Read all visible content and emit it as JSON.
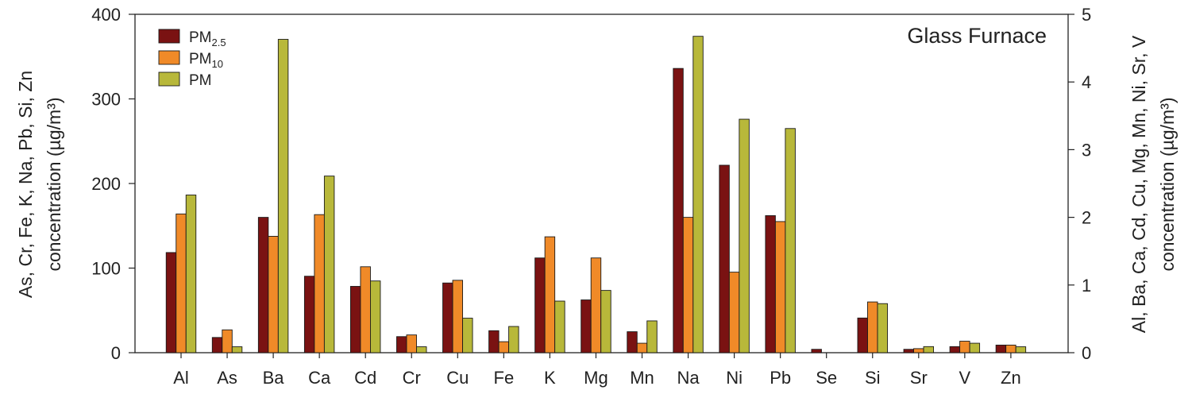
{
  "chart_data": {
    "type": "bar",
    "title": "Glass Furnace",
    "categories": [
      "Al",
      "As",
      "Ba",
      "Ca",
      "Cd",
      "Cr",
      "Cu",
      "Fe",
      "K",
      "Mg",
      "Mn",
      "Na",
      "Ni",
      "Pb",
      "Se",
      "Si",
      "Sr",
      "V",
      "Zn"
    ],
    "series": [
      {
        "name": "PM2.5",
        "color": "#7a1212",
        "values": [
          1.48,
          18,
          2.0,
          1.13,
          0.98,
          19,
          1.03,
          26,
          112,
          0.78,
          0.31,
          336,
          2.77,
          162,
          0.05,
          41,
          0.05,
          0.09,
          9
        ]
      },
      {
        "name": "PM10",
        "color": "#f08a28",
        "values": [
          2.05,
          27,
          1.72,
          2.04,
          1.27,
          21,
          1.07,
          13,
          137,
          1.4,
          0.14,
          160,
          1.19,
          155,
          0,
          60,
          0.06,
          0.17,
          9
        ]
      },
      {
        "name": "PM",
        "color": "#b8b83a",
        "values": [
          2.33,
          7,
          4.63,
          2.61,
          1.06,
          7,
          0.51,
          31,
          61,
          0.92,
          0.47,
          374,
          3.45,
          265,
          0,
          58,
          0.09,
          0.14,
          7
        ]
      }
    ],
    "left_axis_elements": [
      "As",
      "Cr",
      "Fe",
      "K",
      "Na",
      "Pb",
      "Si",
      "Zn"
    ],
    "ylim_left": [
      0,
      400
    ],
    "ylim_right": [
      0,
      5
    ],
    "yticks_left": [
      "0",
      "100",
      "200",
      "300",
      "400"
    ],
    "yticks_right": [
      "0",
      "1",
      "2",
      "3",
      "4",
      "5"
    ],
    "ylabel_left": [
      "As, Cr, Fe, K, Na, Pb, Si, Zn",
      "concentration (µg/m³)"
    ],
    "ylabel_right": [
      "Al, Ba, Ca, Cd, Cu, Mg, Mn, Ni, Sr, V",
      "concentration (µg/m³)"
    ],
    "legend_position": "top-left",
    "grid": false
  }
}
